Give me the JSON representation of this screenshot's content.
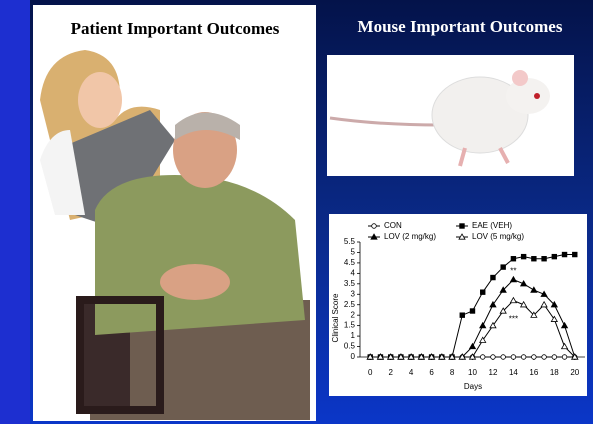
{
  "left_panel": {
    "title": "Patient Important Outcomes"
  },
  "right_panel": {
    "title": "Mouse Important Outcomes"
  },
  "chart_data": {
    "type": "line",
    "x_label": "Days",
    "y_label": "Clinical Score",
    "x": [
      0,
      1,
      2,
      3,
      4,
      5,
      6,
      7,
      8,
      9,
      10,
      11,
      12,
      13,
      14,
      15,
      16,
      17,
      18,
      19,
      20
    ],
    "series": [
      {
        "name": "CON",
        "color": "#000000",
        "marker": "open-circle",
        "values": [
          0,
          0,
          0,
          0,
          0,
          0,
          0,
          0,
          0,
          0,
          0,
          0,
          0,
          0,
          0,
          0,
          0,
          0,
          0,
          0,
          0
        ]
      },
      {
        "name": "EAE (VEH)",
        "color": "#000000",
        "marker": "filled-square",
        "values": [
          0,
          0,
          0,
          0,
          0,
          0,
          0,
          0,
          0,
          2.0,
          2.2,
          3.1,
          3.8,
          4.3,
          4.7,
          4.8,
          4.7,
          4.7,
          4.8,
          4.9,
          4.9
        ]
      },
      {
        "name": "LOV (2 mg/kg)",
        "color": "#000000",
        "marker": "filled-triangle",
        "values": [
          0,
          0,
          0,
          0,
          0,
          0,
          0,
          0,
          0,
          0,
          0.5,
          1.5,
          2.5,
          3.2,
          3.7,
          3.5,
          3.2,
          3.0,
          2.5,
          1.5,
          0
        ]
      },
      {
        "name": "LOV (5 mg/kg)",
        "color": "#000000",
        "marker": "open-triangle",
        "values": [
          0,
          0,
          0,
          0,
          0,
          0,
          0,
          0,
          0,
          0,
          0,
          0.8,
          1.5,
          2.2,
          2.7,
          2.5,
          2.0,
          2.5,
          1.8,
          0.5,
          0
        ]
      }
    ],
    "annotations": [
      {
        "text": "**",
        "x": 14,
        "y": 4.1
      },
      {
        "text": "***",
        "x": 14,
        "y": 1.8
      }
    ],
    "xlim": [
      -1,
      21
    ],
    "xticks": [
      0,
      2,
      4,
      6,
      8,
      10,
      12,
      14,
      16,
      18,
      20
    ],
    "ylim": [
      0,
      5.5
    ],
    "yticks": [
      0,
      0.5,
      1,
      1.5,
      2,
      2.5,
      3,
      3.5,
      4,
      4.5,
      5,
      5.5
    ]
  }
}
